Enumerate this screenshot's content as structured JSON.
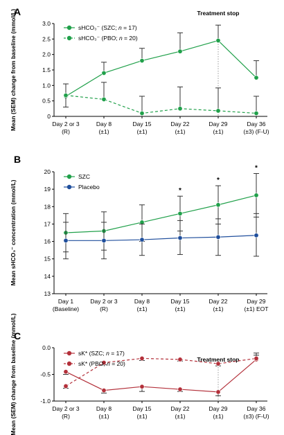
{
  "colors": {
    "szc_green": "#20a04a",
    "pbo_blue": "#1f4e9c",
    "sk_red": "#b3303a",
    "errorbar": "#333333",
    "axis": "#000000",
    "vline": "#999999"
  },
  "chart_data": [
    {
      "type": "line",
      "panel": "A",
      "ylabel": "Mean (SEM) change from baseline (mmol/L)",
      "ylim": [
        0,
        3.0
      ],
      "yticks": [
        "0",
        "0.5",
        "1.0",
        "1.5",
        "2.0",
        "2.5",
        "3.0"
      ],
      "categories": [
        [
          "Day 2 or 3",
          "(R)"
        ],
        [
          "Day 8",
          "(±1)"
        ],
        [
          "Day 15",
          "(±1)"
        ],
        [
          "Day 22",
          "(±1)"
        ],
        [
          "Day 29",
          "(±1)"
        ],
        [
          "Day 36",
          "(±3) (F-U)"
        ]
      ],
      "annotation": "Treatment stop",
      "treatment_stop_index": 4,
      "series": [
        {
          "legend": "sHCO₃⁻ (SZC; ",
          "n_label": "n",
          "n_value": " = 17)",
          "style": "solid",
          "color_key": "szc_green",
          "values": [
            0.65,
            1.4,
            1.8,
            2.1,
            2.45,
            1.25
          ],
          "err_upper": [
            1.05,
            1.75,
            2.2,
            2.7,
            2.95,
            1.8
          ],
          "err_lower": [
            0.65,
            1.4,
            1.8,
            2.1,
            2.45,
            1.25
          ]
        },
        {
          "legend": "sHCO₃⁻ (PBO; ",
          "n_label": "n",
          "n_value": " = 20)",
          "style": "dashed",
          "color_key": "szc_green",
          "values": [
            0.68,
            0.55,
            0.1,
            0.25,
            0.18,
            0.1
          ],
          "err_upper": [
            0.68,
            1.1,
            0.65,
            0.95,
            0.92,
            0.65
          ],
          "err_lower": [
            0.3,
            0.55,
            0.1,
            0.25,
            0.18,
            0.1
          ]
        }
      ]
    },
    {
      "type": "line",
      "panel": "B",
      "ylabel": "Mean sHCO₃⁻ concentration (mmol/L)",
      "ylim": [
        13,
        20
      ],
      "yticks": [
        "13",
        "14",
        "15",
        "16",
        "17",
        "18",
        "19",
        "20"
      ],
      "categories": [
        [
          "Day 1",
          "(Baseline)"
        ],
        [
          "Day 2 or 3",
          "(R)"
        ],
        [
          "Day 8",
          "(±1)"
        ],
        [
          "Day 15",
          "(±1)"
        ],
        [
          "Day 22",
          "(±1)"
        ],
        [
          "Day 29",
          "(±1) EOT"
        ]
      ],
      "significance_indices": [
        3,
        4,
        5
      ],
      "significance_marker": "*",
      "series": [
        {
          "legend": "SZC",
          "style": "solid",
          "color_key": "szc_green",
          "values": [
            16.5,
            16.6,
            17.1,
            17.6,
            18.1,
            18.65
          ],
          "err_upper": [
            17.6,
            17.7,
            18.1,
            18.6,
            19.2,
            19.9
          ],
          "err_lower": [
            15.4,
            15.5,
            16.0,
            16.6,
            17.0,
            17.4
          ]
        },
        {
          "legend": "Placebo",
          "style": "solid",
          "color_key": "pbo_blue",
          "values": [
            16.05,
            16.05,
            16.1,
            16.2,
            16.25,
            16.35
          ],
          "err_upper": [
            17.1,
            17.1,
            17.0,
            17.2,
            17.3,
            17.6
          ],
          "err_lower": [
            15.0,
            15.0,
            15.2,
            15.25,
            15.2,
            15.15
          ]
        }
      ]
    },
    {
      "type": "line",
      "panel": "C",
      "ylabel": "Mean (SEM) change from baseline (mmol/L)",
      "ylim": [
        -1.0,
        0
      ],
      "yticks": [
        "-1.0",
        "-0.5",
        "0.0"
      ],
      "categories": [
        [
          "Day 2 or 3",
          "(R)"
        ],
        [
          "Day 8",
          "(±1)"
        ],
        [
          "Day 15",
          "(±1)"
        ],
        [
          "Day 22",
          "(±1)"
        ],
        [
          "Day 29",
          "(±1)"
        ],
        [
          "Day 36",
          "(±3) (F-U)"
        ]
      ],
      "annotation": "Treatment stop",
      "treatment_stop_index": 4,
      "series": [
        {
          "legend": "sK* (SZC; ",
          "n_label": "n",
          "n_value": " = 17)",
          "style": "solid",
          "color_key": "sk_red",
          "values": [
            -0.45,
            -0.8,
            -0.73,
            -0.78,
            -0.83,
            -0.22
          ],
          "err_upper": [
            -0.45,
            -0.8,
            -0.73,
            -0.78,
            -0.83,
            -0.1
          ],
          "err_lower": [
            -0.5,
            -0.85,
            -0.82,
            -0.82,
            -0.9,
            -0.22
          ]
        },
        {
          "legend": "sK* (PBO; ",
          "n_label": "n",
          "n_value": " = 20)",
          "style": "dashed",
          "color_key": "sk_red",
          "values": [
            -0.72,
            -0.28,
            -0.2,
            -0.22,
            -0.3,
            -0.2
          ],
          "err_upper": [
            -0.72,
            -0.28,
            -0.2,
            -0.22,
            -0.3,
            -0.14
          ],
          "err_lower": [
            -0.76,
            -0.32,
            -0.24,
            -0.25,
            -0.34,
            -0.2
          ]
        }
      ]
    }
  ]
}
